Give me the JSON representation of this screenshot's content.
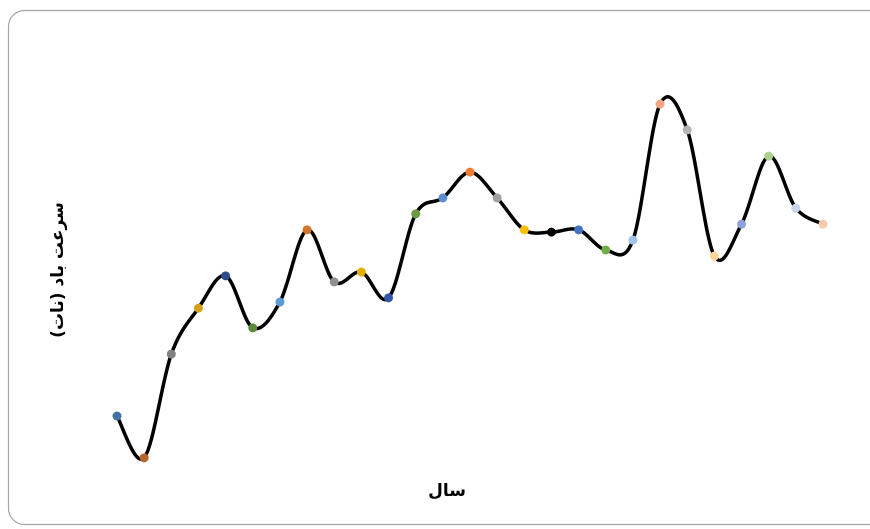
{
  "chart_data": {
    "type": "line",
    "x_label": "سال",
    "y_label": "سرعت باد (نات)",
    "ylim": [
      0,
      100
    ],
    "series": [
      {
        "color": "#000000",
        "values": [
          14.2,
          3.2,
          30.5,
          42.6,
          51.1,
          37.4,
          44.2,
          63.2,
          49.5,
          52.1,
          45.3,
          67.4,
          71.6,
          78.4,
          71.6,
          63.2,
          62.6,
          63.2,
          57.9,
          60.5,
          96.3,
          89.5,
          56.3,
          64.7,
          82.6,
          68.9,
          64.7
        ],
        "marker_colors": [
          "#4472a0",
          "#b5652a",
          "#808080",
          "#d4a017",
          "#2f4b8a",
          "#5a8a3a",
          "#5b9bd5",
          "#d0742e",
          "#909090",
          "#e0b000",
          "#3355a8",
          "#6a9a40",
          "#5b8fd0",
          "#ed7d31",
          "#a0a0a0",
          "#ffc000",
          "#000000",
          "#4472c4",
          "#70ad47",
          "#9dc3e6",
          "#f4a582",
          "#b4b4b4",
          "#ffd59a",
          "#8fa3d8",
          "#a9d18e",
          "#c5d6ef",
          "#f8cbad"
        ]
      }
    ]
  }
}
